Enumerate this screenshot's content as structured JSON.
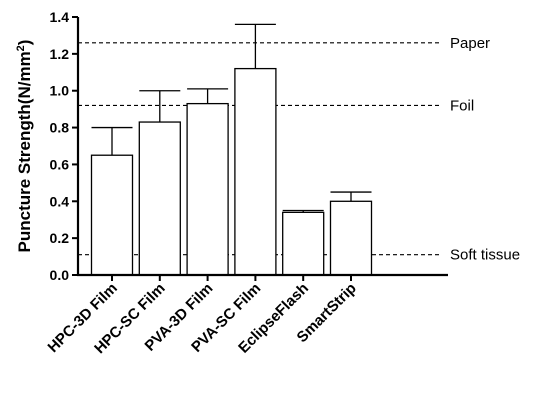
{
  "chart_data": {
    "type": "bar",
    "title": "",
    "xlabel": "",
    "ylabel": "Puncture Strength(N/mm",
    "ylabel_superscript": "2",
    "ylabel_close": ")",
    "ylim": [
      0,
      1.4
    ],
    "yticks": [
      0,
      0.2,
      0.4,
      0.6,
      0.8,
      1.0,
      1.2,
      1.4
    ],
    "ytick_labels": [
      "0.0",
      "0.2",
      "0.4",
      "0.6",
      "0.8",
      "1.0",
      "1.2",
      "1.4"
    ],
    "categories": [
      "HPC-3D Film",
      "HPC-SC Film",
      "PVA-3D Film",
      "PVA-SC Film",
      "EclipseFlash",
      "SmartStrip"
    ],
    "values": [
      0.65,
      0.83,
      0.93,
      1.12,
      0.34,
      0.4
    ],
    "error_upper": [
      0.8,
      1.0,
      1.01,
      1.36,
      0.35,
      0.45
    ],
    "reference_lines": [
      {
        "label": "Paper",
        "value": 1.26
      },
      {
        "label": "Foil",
        "value": 0.92
      },
      {
        "label": "Soft tissue",
        "value": 0.11
      }
    ],
    "grid": false,
    "bar_color": "#ffffff",
    "edge_color": "#000000"
  }
}
